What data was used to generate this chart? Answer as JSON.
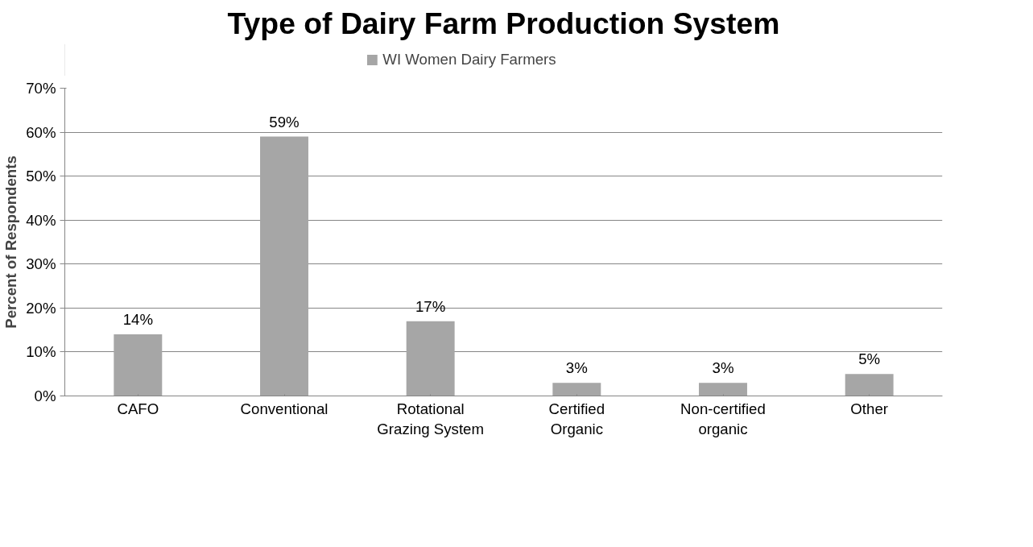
{
  "chart_data": {
    "type": "bar",
    "title": "Type of Dairy Farm Production System",
    "ylabel": "Percent of Respondents",
    "categories": [
      "CAFO",
      "Conventional",
      "Rotational Grazing System",
      "Certified Organic",
      "Non-certified organic",
      "Other"
    ],
    "series": [
      {
        "name": "WI Women Dairy Farmers",
        "color": "#a6a6a6",
        "values": [
          14,
          59,
          17,
          3,
          3,
          5
        ],
        "value_labels": [
          "14%",
          "59%",
          "17%",
          "3%",
          "3%",
          "5%"
        ]
      }
    ],
    "ylim": [
      0,
      70
    ],
    "yticks": [
      {
        "value": 0,
        "label": "0%"
      },
      {
        "value": 10,
        "label": "10%"
      },
      {
        "value": 20,
        "label": "20%"
      },
      {
        "value": 30,
        "label": "30%"
      },
      {
        "value": 40,
        "label": "40%"
      },
      {
        "value": 50,
        "label": "50%"
      },
      {
        "value": 60,
        "label": "60%"
      },
      {
        "value": 70,
        "label": "70%"
      }
    ],
    "grid": "y",
    "legend": "top"
  }
}
